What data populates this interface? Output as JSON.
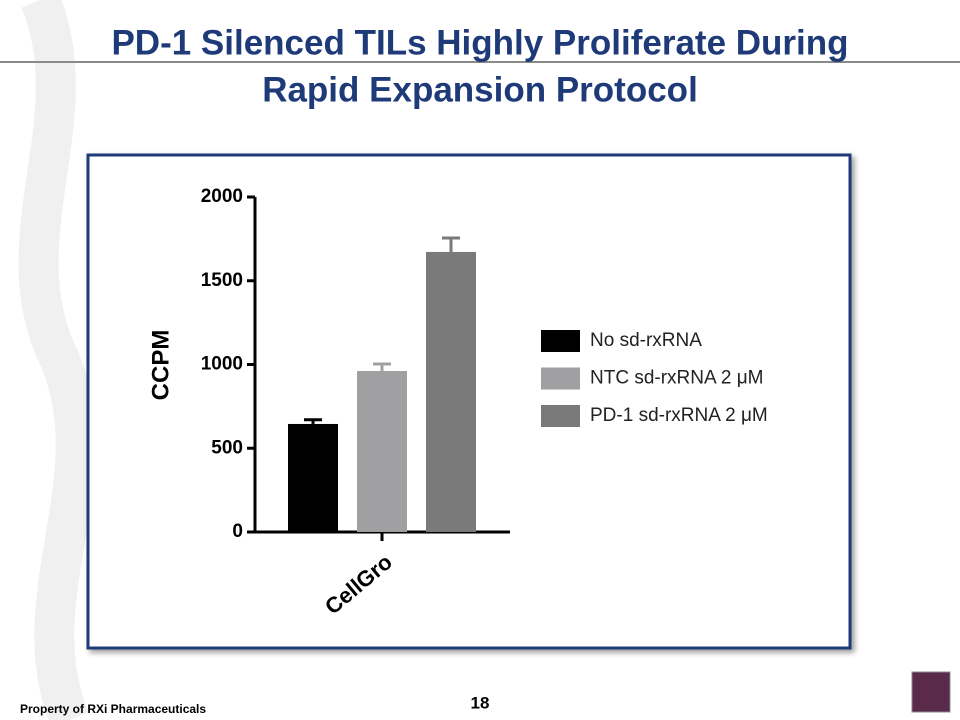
{
  "slide": {
    "title_lines": [
      "PD-1 Silenced TILs Highly Proliferate During",
      "Rapid Expansion Protocol"
    ],
    "footer": "Property of RXi Pharmaceuticals",
    "page_number": "18"
  },
  "chart_data": {
    "type": "bar",
    "y_label": "CCPM",
    "categories": [
      "CellGro"
    ],
    "series": [
      {
        "name": "No sd-rxRNA",
        "color": "#000000",
        "values": [
          645
        ],
        "errors": [
          25
        ]
      },
      {
        "name": "NTC sd-rxRNA 2 μM",
        "color": "#a0a0a2",
        "values": [
          961
        ],
        "errors": [
          42
        ]
      },
      {
        "name": "PD-1 sd-rxRNA 2 μM",
        "color": "#7a7a7a",
        "values": [
          1672
        ],
        "errors": [
          83
        ]
      }
    ],
    "ylim": [
      0,
      2000
    ],
    "yticks": [
      0,
      500,
      1000,
      1500,
      2000
    ]
  }
}
